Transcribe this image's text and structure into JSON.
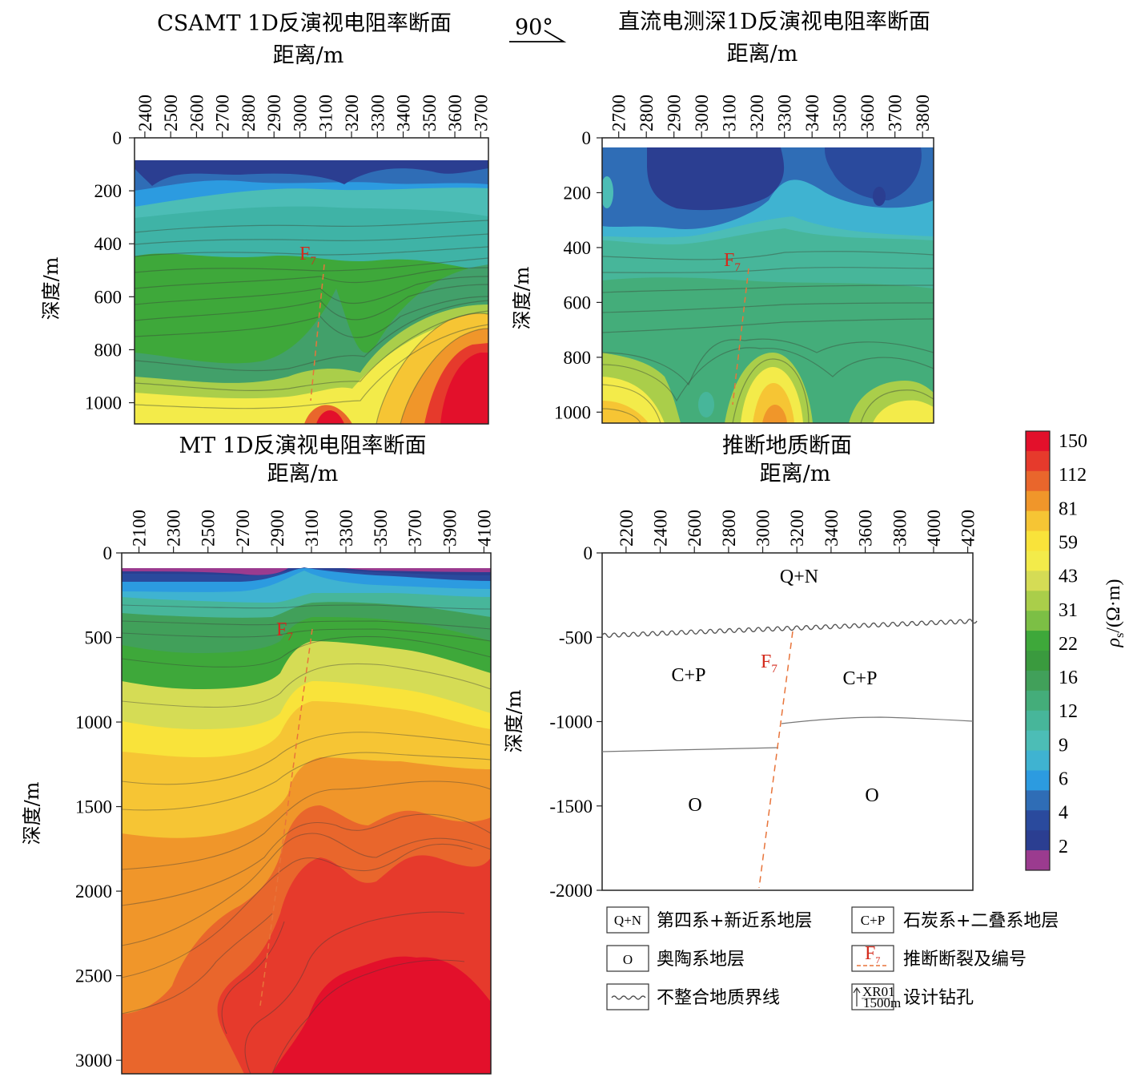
{
  "panels": [
    {
      "title": "CSAMT 1D反演视电阻率断面",
      "xlabel": "距离/m",
      "ylabel": "深度/m",
      "x_ticks": [
        "2400",
        "2500",
        "2600",
        "2700",
        "2800",
        "2900",
        "3000",
        "3100",
        "3200",
        "3300",
        "3400",
        "3500",
        "3600",
        "3700"
      ],
      "y_ticks": [
        "0",
        "200",
        "400",
        "600",
        "800",
        "1000"
      ],
      "fault_label": "F",
      "fault_sub": "7"
    },
    {
      "title": "直流电测深1D反演视电阻率断面",
      "xlabel": "距离/m",
      "ylabel": "深度/m",
      "x_ticks": [
        "2700",
        "2800",
        "2900",
        "3000",
        "3100",
        "3200",
        "3300",
        "3400",
        "3500",
        "3600",
        "3700",
        "3800"
      ],
      "y_ticks": [
        "0",
        "200",
        "400",
        "600",
        "800",
        "1000"
      ],
      "fault_label": "F",
      "fault_sub": "7"
    },
    {
      "title": "MT 1D反演视电阻率断面",
      "xlabel": "距离/m",
      "ylabel": "深度/m",
      "x_ticks": [
        "2100",
        "2300",
        "2500",
        "2700",
        "2900",
        "3100",
        "3300",
        "3500",
        "3700",
        "3900",
        "4100"
      ],
      "y_ticks": [
        "0",
        "500",
        "1000",
        "1500",
        "2000",
        "2500",
        "3000"
      ],
      "fault_label": "F",
      "fault_sub": "7"
    },
    {
      "title": "推断地质断面",
      "xlabel": "距离/m",
      "ylabel": "深度/m",
      "x_ticks": [
        "2200",
        "2400",
        "2600",
        "2800",
        "3000",
        "3200",
        "3400",
        "3600",
        "3800",
        "4000",
        "4200"
      ],
      "y_ticks": [
        "0",
        "-500",
        "-1000",
        "-1500",
        "-2000"
      ],
      "units": [
        "Q+N",
        "C+P",
        "C+P",
        "O",
        "O"
      ],
      "fault_label": "F",
      "fault_sub": "7"
    }
  ],
  "direction": {
    "label": "90°"
  },
  "colorbar": {
    "label": "ρ",
    "label_sub": "s",
    "label_unit": "/(Ω·m)",
    "ticks": [
      "150",
      "112",
      "81",
      "59",
      "43",
      "31",
      "22",
      "16",
      "12",
      "9",
      "6",
      "4",
      "2"
    ],
    "colors": [
      "#e3102b",
      "#e63a2c",
      "#e9662c",
      "#f0962a",
      "#f6c534",
      "#f9e33a",
      "#f3eb4a",
      "#d5dc55",
      "#aace4a",
      "#7cbf45",
      "#3ea83a",
      "#3a9a3e",
      "#41a05a",
      "#44ad7a",
      "#47b69a",
      "#4cbdb6",
      "#3fb3d1",
      "#2c9be0",
      "#2f6db6",
      "#2a4a9d",
      "#2b3e91",
      "#9b3b8f"
    ]
  },
  "legend": {
    "items": [
      {
        "symbol": "Q+N",
        "text": "第四系+新近系地层"
      },
      {
        "symbol": "C+P",
        "text": "石炭系+二叠系地层"
      },
      {
        "symbol": "O",
        "text": "奥陶系地层"
      },
      {
        "symbol": "F7",
        "text": "推断断裂及编号"
      },
      {
        "symbol": "wave",
        "text": "不整合地质界线"
      },
      {
        "symbol": "XR01 1500m",
        "text": "设计钻孔"
      }
    ]
  },
  "chart_data": [
    {
      "type": "heatmap",
      "title": "CSAMT 1D反演视电阻率断面",
      "xlabel": "距离/m",
      "ylabel": "深度/m",
      "xlim": [
        2360,
        3730
      ],
      "ylim": [
        0,
        1080
      ],
      "value_unit": "Ω·m",
      "fault": {
        "name": "F7",
        "top": [
          3150,
          480
        ],
        "bottom": [
          3080,
          1000
        ]
      },
      "zones": [
        {
          "depth": [
            90,
            260
          ],
          "rho": 4
        },
        {
          "depth": [
            260,
            420
          ],
          "rho": 9
        },
        {
          "depth": [
            420,
            850
          ],
          "rho": 16
        },
        {
          "x": [
            3350,
            3730
          ],
          "depth": [
            550,
            1080
          ],
          "rho": 59
        },
        {
          "x": [
            3550,
            3730
          ],
          "depth": [
            800,
            1080
          ],
          "rho": 150
        },
        {
          "x": [
            3050,
            3200
          ],
          "depth": [
            980,
            1080
          ],
          "rho": 150
        }
      ]
    },
    {
      "type": "heatmap",
      "title": "直流电测深1D反演视电阻率断面",
      "xlabel": "距离/m",
      "ylabel": "深度/m",
      "xlim": [
        2640,
        3840
      ],
      "ylim": [
        0,
        1040
      ],
      "value_unit": "Ω·m",
      "fault": {
        "name": "F7",
        "top": [
          3170,
          480
        ],
        "bottom": [
          3120,
          1000
        ]
      },
      "zones": [
        {
          "depth": [
            30,
            300
          ],
          "rho": 4
        },
        {
          "depth": [
            300,
            450
          ],
          "rho": 9
        },
        {
          "depth": [
            450,
            800
          ],
          "rho": 16
        },
        {
          "x": [
            2640,
            2850
          ],
          "depth": [
            800,
            1040
          ],
          "rho": 59
        },
        {
          "x": [
            3200,
            3400
          ],
          "depth": [
            800,
            1040
          ],
          "rho": 81
        },
        {
          "x": [
            3620,
            3840
          ],
          "depth": [
            880,
            1040
          ],
          "rho": 43
        }
      ]
    },
    {
      "type": "heatmap",
      "title": "MT 1D反演视电阻率断面",
      "xlabel": "距离/m",
      "ylabel": "深度/m",
      "xlim": [
        2000,
        4140
      ],
      "ylim": [
        0,
        3080
      ],
      "value_unit": "Ω·m",
      "fault": {
        "name": "F7",
        "top": [
          3150,
          450
        ],
        "bottom": [
          2840,
          2700
        ]
      },
      "zones": [
        {
          "depth": [
            90,
            140
          ],
          "rho": 2
        },
        {
          "depth": [
            140,
            350
          ],
          "rho": 4
        },
        {
          "depth": [
            350,
            900
          ],
          "rho": 12
        },
        {
          "depth": [
            900,
            1300
          ],
          "rho": 31
        },
        {
          "depth": [
            1300,
            2000
          ],
          "rho": 59
        },
        {
          "x": [
            3200,
            4140
          ],
          "depth": [
            1800,
            3080
          ],
          "rho": 112
        },
        {
          "x": [
            3300,
            4140
          ],
          "depth": [
            2500,
            3080
          ],
          "rho": 150
        }
      ]
    },
    {
      "type": "table",
      "title": "推断地质断面",
      "xlabel": "距离/m",
      "ylabel": "深度/m",
      "xlim": [
        2060,
        4230
      ],
      "ylim": [
        -2000,
        0
      ],
      "units": [
        {
          "name": "Q+N",
          "top": 0,
          "base": -480
        },
        {
          "name": "C+P",
          "top": -480,
          "base": -1150
        },
        {
          "name": "O",
          "top": -1150,
          "base": -2000
        }
      ],
      "fault": {
        "name": "F7",
        "top": [
          3160,
          -450
        ],
        "bottom": [
          2950,
          -2000
        ]
      }
    }
  ]
}
